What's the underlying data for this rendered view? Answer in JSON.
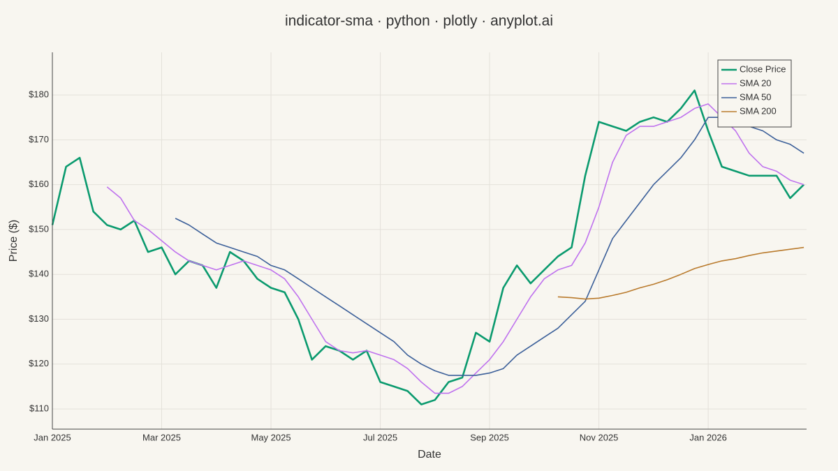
{
  "chart_data": {
    "type": "line",
    "title": "indicator-sma · python · plotly · anyplot.ai",
    "x_label": "Date",
    "y_label": "Price ($)",
    "x": [
      0,
      0.25,
      0.5,
      0.75,
      1,
      1.25,
      1.5,
      1.75,
      2,
      2.25,
      2.5,
      2.75,
      3,
      3.25,
      3.5,
      3.75,
      4,
      4.25,
      4.5,
      4.75,
      5,
      5.25,
      5.5,
      5.75,
      6,
      6.25,
      6.5,
      6.75,
      7,
      7.25,
      7.5,
      7.75,
      8,
      8.25,
      8.5,
      8.75,
      9,
      9.25,
      9.5,
      9.75,
      10,
      10.25,
      10.5,
      10.75,
      11,
      11.25,
      11.5,
      11.75,
      12,
      12.25,
      12.5,
      12.75,
      13,
      13.25,
      13.5,
      13.75
    ],
    "series": [
      {
        "name": "Close Price",
        "color": "#0a9a6e",
        "width": 2.6,
        "values": [
          151,
          164,
          166,
          154,
          151,
          150,
          152,
          145,
          146,
          140,
          143,
          142,
          137,
          145,
          143,
          139,
          137,
          136,
          130,
          121,
          124,
          123,
          121,
          123,
          116,
          115,
          114,
          111,
          112,
          116,
          117,
          127,
          125,
          137,
          142,
          138,
          141,
          144,
          146,
          162,
          174,
          173,
          172,
          174,
          175,
          174,
          177,
          181,
          172,
          164,
          163,
          162,
          162,
          162,
          157,
          160
        ]
      },
      {
        "name": "SMA 20",
        "color": "#bf72ee",
        "width": 1.6,
        "values": [
          null,
          null,
          null,
          null,
          159.5,
          157,
          152,
          150,
          147.5,
          145,
          143,
          142,
          141,
          142,
          143,
          142,
          141,
          139,
          135,
          130,
          125,
          123,
          122.5,
          123,
          122,
          121,
          119,
          116,
          113.5,
          113.5,
          115,
          118,
          121,
          125,
          130,
          135,
          139,
          141,
          142,
          147,
          155,
          165,
          171,
          173,
          173,
          174,
          175,
          177,
          178,
          175,
          172,
          167,
          164,
          163,
          161,
          160
        ]
      },
      {
        "name": "SMA 50",
        "color": "#3b5f99",
        "width": 1.6,
        "values": [
          null,
          null,
          null,
          null,
          null,
          null,
          null,
          null,
          null,
          152.5,
          151,
          149,
          147,
          146,
          145,
          144,
          142,
          141,
          139,
          137,
          135,
          133,
          131,
          129,
          127,
          125,
          122,
          120,
          118.5,
          117.5,
          117.5,
          117.5,
          118,
          119,
          122,
          124,
          126,
          128,
          131,
          134,
          141,
          148,
          152,
          156,
          160,
          163,
          166,
          170,
          175,
          175,
          174,
          173,
          172,
          170,
          169,
          167
        ]
      },
      {
        "name": "SMA 200",
        "color": "#b97a2c",
        "width": 1.6,
        "values": [
          null,
          null,
          null,
          null,
          null,
          null,
          null,
          null,
          null,
          null,
          null,
          null,
          null,
          null,
          null,
          null,
          null,
          null,
          null,
          null,
          null,
          null,
          null,
          null,
          null,
          null,
          null,
          null,
          null,
          null,
          null,
          null,
          null,
          null,
          null,
          null,
          null,
          135,
          134.8,
          134.5,
          134.7,
          135.3,
          136,
          137,
          137.8,
          138.8,
          140,
          141.3,
          142.2,
          143,
          143.5,
          144.2,
          144.8,
          145.2,
          145.6,
          146
        ]
      }
    ],
    "xlim": [
      0,
      13.8
    ],
    "xticks": [
      {
        "value": 0,
        "label": "Jan 2025"
      },
      {
        "value": 2,
        "label": "Mar 2025"
      },
      {
        "value": 4,
        "label": "May 2025"
      },
      {
        "value": 6,
        "label": "Jul 2025"
      },
      {
        "value": 8,
        "label": "Sep 2025"
      },
      {
        "value": 10,
        "label": "Nov 2025"
      },
      {
        "value": 12,
        "label": "Jan 2026"
      }
    ],
    "ylim": [
      105.5,
      189.5
    ],
    "yticks": [
      {
        "value": 110,
        "label": "$110"
      },
      {
        "value": 120,
        "label": "$120"
      },
      {
        "value": 130,
        "label": "$130"
      },
      {
        "value": 140,
        "label": "$140"
      },
      {
        "value": 150,
        "label": "$150"
      },
      {
        "value": 160,
        "label": "$160"
      },
      {
        "value": 170,
        "label": "$170"
      },
      {
        "value": 180,
        "label": "$180"
      }
    ],
    "grid": true,
    "legend": "top-right"
  }
}
